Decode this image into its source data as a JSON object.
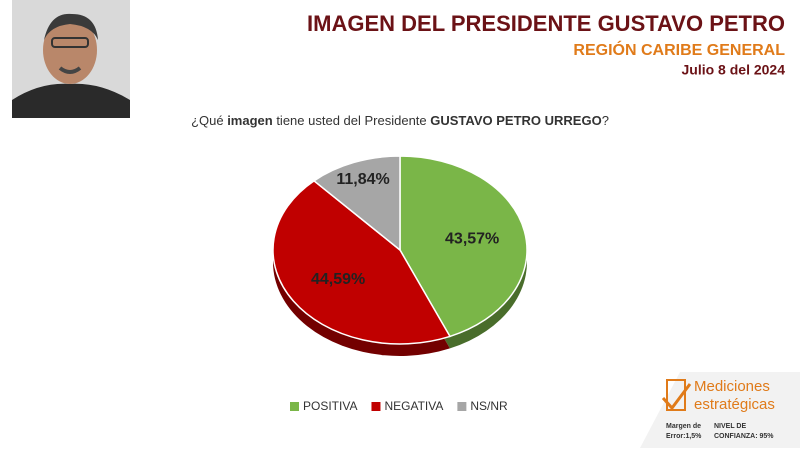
{
  "chart_data": {
    "type": "pie",
    "title": "IMAGEN DEL PRESIDENTE GUSTAVO PETRO",
    "subtitle": "REGIÓN CARIBE GENERAL",
    "date": "Julio 8 del 2024",
    "question": [
      "¿Qué ",
      "imagen",
      " tiene usted del Presidente ",
      "GUSTAVO PETRO URREGO",
      "?"
    ],
    "categories": [
      "POSITIVA",
      "NEGATIVA",
      "NS/NR"
    ],
    "values": [
      43.57,
      44.59,
      11.84
    ],
    "value_labels": [
      "43,57%",
      "44,59%",
      "11,84%"
    ],
    "colors": [
      "#7ab648",
      "#c00000",
      "#a6a6a6"
    ],
    "legend": "bottom"
  },
  "footer": {
    "brand": [
      "Mediciones",
      "estratégicas"
    ],
    "margin": [
      "Margen de",
      "Error:1,5%"
    ],
    "confidence": [
      "NIVEL DE",
      "CONFIANZA: 95%"
    ]
  }
}
